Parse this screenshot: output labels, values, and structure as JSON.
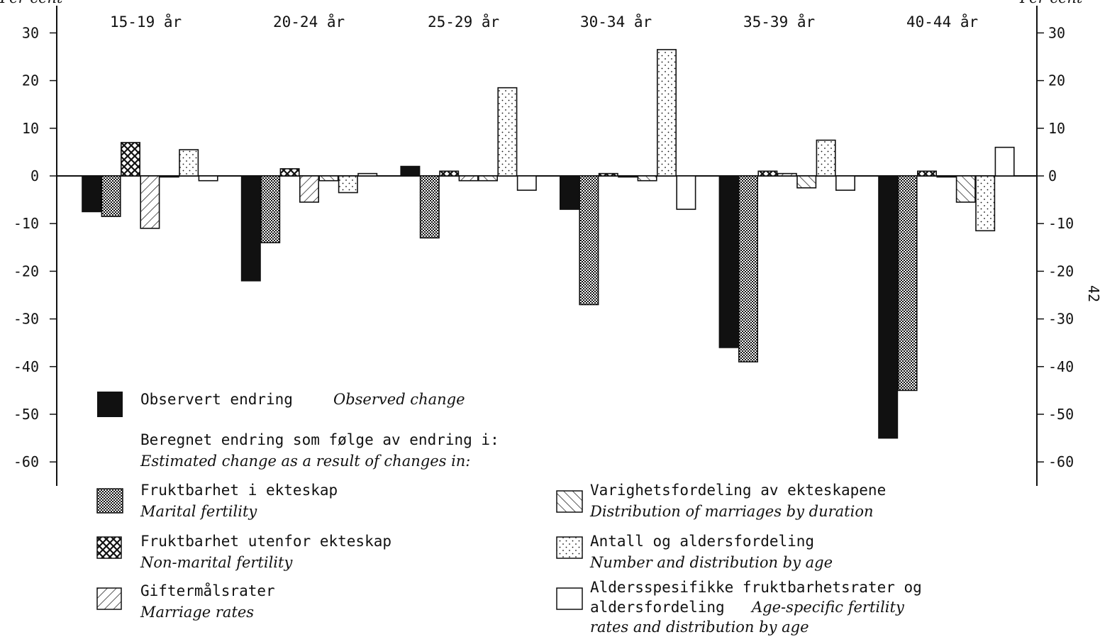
{
  "chart_data": {
    "type": "bar",
    "y_unit_left": "Per cent",
    "y_unit_right": "Per cent",
    "page_number": "42",
    "ylim": [
      -60,
      30
    ],
    "yticks": [
      30,
      20,
      10,
      0,
      -10,
      -20,
      -30,
      -40,
      -50,
      -60
    ],
    "grid": false,
    "categories": [
      "15-19 år",
      "20-24 år",
      "25-29 år",
      "30-34 år",
      "35-39 år",
      "40-44 år"
    ],
    "series": [
      {
        "key": "observed",
        "pattern": "solid",
        "values": [
          -7.5,
          -22,
          2,
          -7,
          -36,
          -55
        ]
      },
      {
        "key": "marital",
        "pattern": "dense",
        "values": [
          -8.5,
          -14,
          -13,
          -27,
          -39,
          -45
        ]
      },
      {
        "key": "nonmarital",
        "pattern": "crosshatch",
        "values": [
          7,
          1.5,
          1,
          0.5,
          1,
          1
        ]
      },
      {
        "key": "marriage",
        "pattern": "hatch-right",
        "values": [
          -11,
          -5.5,
          -1,
          0,
          0.5,
          0
        ]
      },
      {
        "key": "duration",
        "pattern": "hatch-left",
        "values": [
          0,
          -1,
          -1,
          -1,
          -2.5,
          -5.5
        ]
      },
      {
        "key": "number_age",
        "pattern": "dots",
        "values": [
          5.5,
          -3.5,
          18.5,
          26.5,
          7.5,
          -11.5
        ]
      },
      {
        "key": "age_specific",
        "pattern": "empty",
        "values": [
          -1,
          0.5,
          -3,
          -7,
          -3,
          6
        ]
      }
    ],
    "legend": {
      "observed": {
        "no": "Observert endring",
        "en": "Observed change"
      },
      "heading_no": "Beregnet endring som følge av endring i:",
      "heading_en": "Estimated change as a result of changes in:",
      "marital": {
        "no": "Fruktbarhet i ekteskap",
        "en": "Marital fertility"
      },
      "nonmarital": {
        "no": "Fruktbarhet utenfor ekteskap",
        "en": "Non-marital fertility"
      },
      "marriage": {
        "no": "Giftermålsrater",
        "en": "Marriage rates"
      },
      "duration": {
        "no": "Varighetsfordeling av ekteskapene",
        "en": "Distribution of marriages by duration"
      },
      "number_age": {
        "no": "Antall og aldersfordeling",
        "en": "Number and distribution by age"
      },
      "age_specific": {
        "no_line1": "Aldersspesifikke fruktbarhetsrater og",
        "no_line2": "aldersfordeling",
        "en_line2": "Age-specific fertility",
        "en_line3": "rates and distribution by age"
      }
    },
    "colors": {
      "ink": "#111111",
      "paper": "#ffffff"
    }
  }
}
